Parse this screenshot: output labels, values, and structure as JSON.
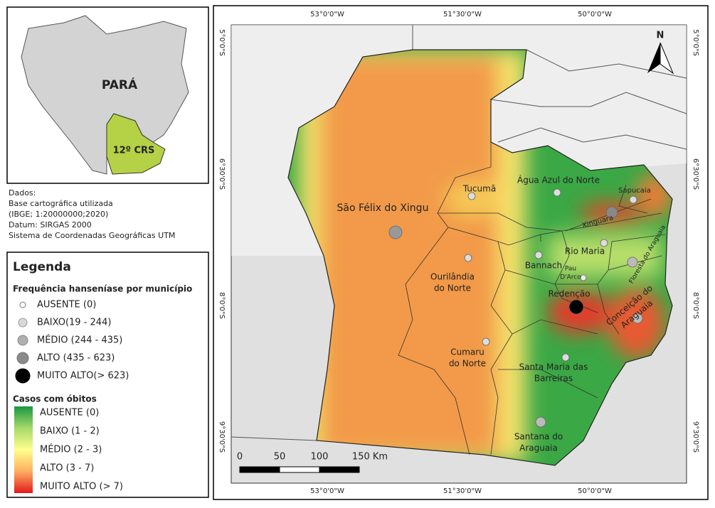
{
  "inset": {
    "state_label": "PARÁ",
    "region_label": "12º CRS"
  },
  "data_notes": [
    "Dados:",
    "Base cartográfica utilizada",
    "(IBGE; 1:20000000;2020)",
    "Datum: SIRGAS 2000",
    "Sistema de Coordenadas Geográficas UTM"
  ],
  "legend": {
    "title": "Legenda",
    "symbols_title": "Frequência hanseníase por município",
    "symbols": [
      "AUSENTE (0)",
      "BAIXO(19 - 244)",
      "MÉDIO (244 - 435)",
      "ALTO (435 - 623)",
      "MUITO ALTO(> 623)"
    ],
    "gradient_title": "Casos com óbitos",
    "gradient": [
      "AUSENTE (0)",
      "BAIXO (1 - 2)",
      "MÉDIO (2 - 3)",
      "ALTO (3 - 7)",
      "MUITO ALTO (> 7)"
    ]
  },
  "map": {
    "top_coords": [
      "53°0'0\"W",
      "51°30'0\"W",
      "50°0'0\"W"
    ],
    "bottom_coords": [
      "53°0'0\"W",
      "51°30'0\"W",
      "50°0'0\"W"
    ],
    "left_coords": [
      "5°0'0\"S",
      "6°30'0\"S",
      "8°0'0\"S",
      "9°30'0\"S"
    ],
    "right_coords": [
      "5°0'0\"S",
      "6°30'0\"S",
      "8°0'0\"S",
      "9°30'0\"S"
    ],
    "north": "N",
    "scale": [
      "0",
      "50",
      "100",
      "150 Km"
    ],
    "municipalities": [
      {
        "lines": [
          "São Félix do Xingu"
        ]
      },
      {
        "lines": [
          "Tucumã"
        ]
      },
      {
        "lines": [
          "Água Azul do Norte"
        ]
      },
      {
        "lines": [
          "Sapucaia"
        ]
      },
      {
        "lines": [
          "Xinguara"
        ]
      },
      {
        "lines": [
          "Rio Maria"
        ]
      },
      {
        "lines": [
          "Floresta do Araguaia"
        ]
      },
      {
        "lines": [
          "Bannach"
        ]
      },
      {
        "lines": [
          "Ourilândia",
          "do Norte"
        ]
      },
      {
        "lines": [
          "Pau",
          "D'Arco"
        ]
      },
      {
        "lines": [
          "Redenção"
        ]
      },
      {
        "lines": [
          "Conceição do",
          "Araguaia"
        ]
      },
      {
        "lines": [
          "Cumaru",
          "do Norte"
        ]
      },
      {
        "lines": [
          "Santa Maria das",
          "Barreiras"
        ]
      },
      {
        "lines": [
          "Santana do",
          "Araguaia"
        ]
      }
    ]
  }
}
